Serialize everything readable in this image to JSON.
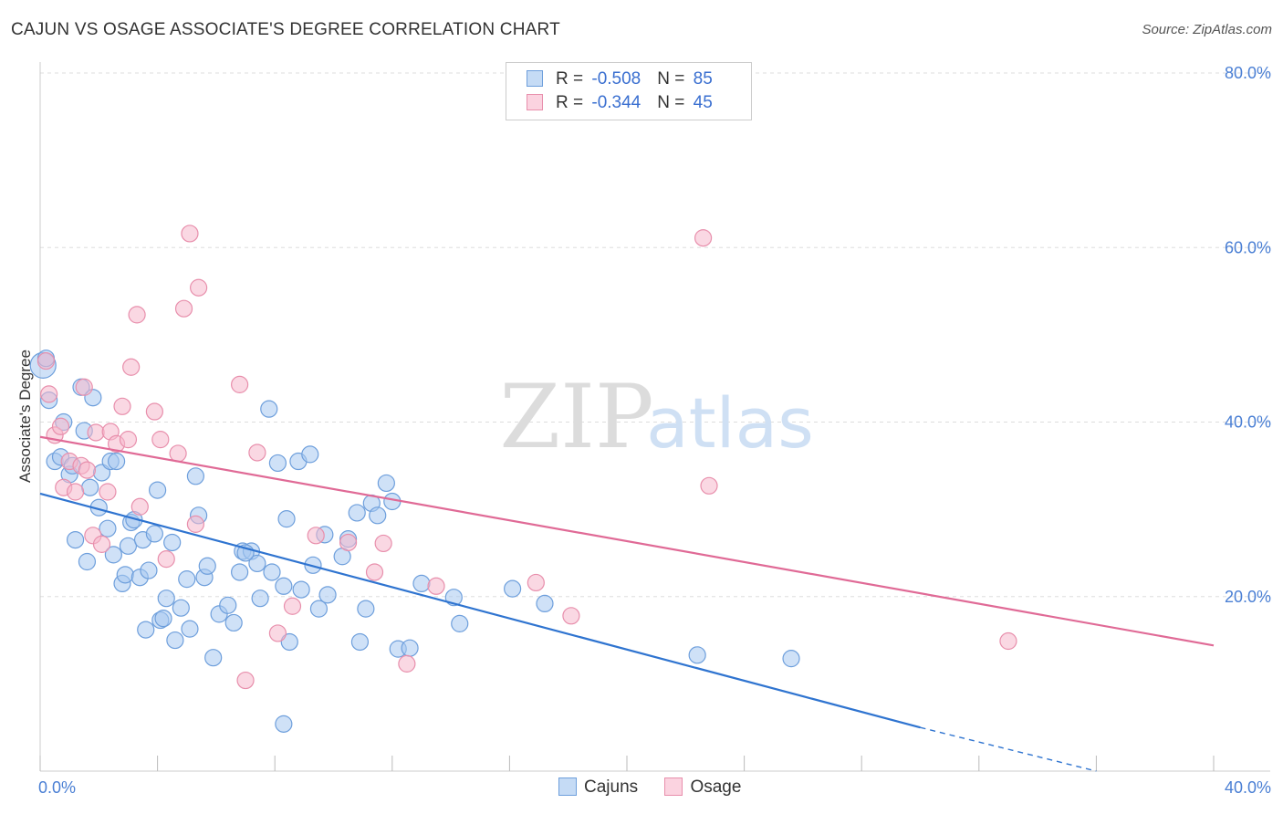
{
  "header": {
    "title": "CAJUN VS OSAGE ASSOCIATE'S DEGREE CORRELATION CHART",
    "source": "Source: ZipAtlas.com"
  },
  "watermark": {
    "zip": "ZIP",
    "atlas": "atlas"
  },
  "legend": {
    "rows": [
      {
        "r_label": "R = ",
        "r_value": "-0.508",
        "n_label": "N = ",
        "n_value": "85",
        "color": "#a8c8f0"
      },
      {
        "r_label": "R = ",
        "r_value": "-0.344",
        "n_label": "N = ",
        "n_value": "45",
        "color": "#f5b8cc"
      }
    ]
  },
  "bottom_legend": [
    {
      "label": "Cajuns",
      "color": "#a8c8f0"
    },
    {
      "label": "Osage",
      "color": "#f5b8cc"
    }
  ],
  "chart_data": {
    "type": "scatter",
    "title": "CAJUN VS OSAGE ASSOCIATE'S DEGREE CORRELATION CHART",
    "xlabel": "",
    "ylabel": "Associate's Degree",
    "xlim": [
      0,
      40
    ],
    "ylim": [
      0,
      80
    ],
    "x_tick_labels": [
      {
        "value": 0,
        "label": "0.0%"
      },
      {
        "value": 40,
        "label": "40.0%"
      }
    ],
    "y_tick_labels": [
      {
        "value": 20,
        "label": "20.0%"
      },
      {
        "value": 40,
        "label": "40.0%"
      },
      {
        "value": 60,
        "label": "60.0%"
      },
      {
        "value": 80,
        "label": "80.0%"
      }
    ],
    "grid": true,
    "legend_position": "top-center",
    "series": [
      {
        "name": "Cajuns",
        "color": "#a8c8f0",
        "stroke": "#6e9fdc",
        "line_color": "#2f74d0",
        "trend": {
          "x": [
            0,
            30
          ],
          "y": [
            31.8,
            5.0
          ],
          "dashed_to": [
            36,
            0
          ]
        },
        "points": [
          [
            0.1,
            46.5
          ],
          [
            0.2,
            47.3
          ],
          [
            0.3,
            42.5
          ],
          [
            0.5,
            35.5
          ],
          [
            0.7,
            36.0
          ],
          [
            0.8,
            40.0
          ],
          [
            1.0,
            34.0
          ],
          [
            1.1,
            35.0
          ],
          [
            1.2,
            26.5
          ],
          [
            1.4,
            44.0
          ],
          [
            1.5,
            39.0
          ],
          [
            1.6,
            24.0
          ],
          [
            1.7,
            32.5
          ],
          [
            1.8,
            42.8
          ],
          [
            2.0,
            30.2
          ],
          [
            2.1,
            34.2
          ],
          [
            2.3,
            27.8
          ],
          [
            2.4,
            35.5
          ],
          [
            2.5,
            24.8
          ],
          [
            2.6,
            35.5
          ],
          [
            2.8,
            21.5
          ],
          [
            2.9,
            22.5
          ],
          [
            3.0,
            25.8
          ],
          [
            3.1,
            28.5
          ],
          [
            3.2,
            28.8
          ],
          [
            3.4,
            22.2
          ],
          [
            3.5,
            26.5
          ],
          [
            3.6,
            16.2
          ],
          [
            3.7,
            23.0
          ],
          [
            3.9,
            27.2
          ],
          [
            4.0,
            32.2
          ],
          [
            4.1,
            17.3
          ],
          [
            4.2,
            17.5
          ],
          [
            4.3,
            19.8
          ],
          [
            4.5,
            26.2
          ],
          [
            4.6,
            15.0
          ],
          [
            4.8,
            18.7
          ],
          [
            5.0,
            22.0
          ],
          [
            5.1,
            16.3
          ],
          [
            5.3,
            33.8
          ],
          [
            5.4,
            29.3
          ],
          [
            5.6,
            22.2
          ],
          [
            5.7,
            23.5
          ],
          [
            5.9,
            13.0
          ],
          [
            6.1,
            18.0
          ],
          [
            6.4,
            19.0
          ],
          [
            6.6,
            17.0
          ],
          [
            6.8,
            22.8
          ],
          [
            6.9,
            25.2
          ],
          [
            7.2,
            25.2
          ],
          [
            7.4,
            23.8
          ],
          [
            7.5,
            19.8
          ],
          [
            7.8,
            41.5
          ],
          [
            7.9,
            22.8
          ],
          [
            8.1,
            35.3
          ],
          [
            8.3,
            21.2
          ],
          [
            8.4,
            28.9
          ],
          [
            8.5,
            14.8
          ],
          [
            8.8,
            35.5
          ],
          [
            8.9,
            20.8
          ],
          [
            9.2,
            36.3
          ],
          [
            9.3,
            23.6
          ],
          [
            9.5,
            18.6
          ],
          [
            9.7,
            27.1
          ],
          [
            9.8,
            20.2
          ],
          [
            10.3,
            24.6
          ],
          [
            10.5,
            26.6
          ],
          [
            10.8,
            29.6
          ],
          [
            10.9,
            14.8
          ],
          [
            11.1,
            18.6
          ],
          [
            11.3,
            30.7
          ],
          [
            11.5,
            29.3
          ],
          [
            11.8,
            33.0
          ],
          [
            12.0,
            30.9
          ],
          [
            12.2,
            14.0
          ],
          [
            12.6,
            14.1
          ],
          [
            13.0,
            21.5
          ],
          [
            14.1,
            19.9
          ],
          [
            14.3,
            16.9
          ],
          [
            16.1,
            20.9
          ],
          [
            17.2,
            19.2
          ],
          [
            22.4,
            13.3
          ],
          [
            25.6,
            12.9
          ],
          [
            8.3,
            5.4
          ],
          [
            7.0,
            25.0
          ]
        ]
      },
      {
        "name": "Osage",
        "color": "#f5b8cc",
        "stroke": "#e88fac",
        "line_color": "#e06a96",
        "trend": {
          "x": [
            0,
            40
          ],
          "y": [
            38.3,
            14.4
          ]
        },
        "points": [
          [
            0.2,
            47.0
          ],
          [
            0.3,
            43.2
          ],
          [
            0.5,
            38.5
          ],
          [
            0.7,
            39.5
          ],
          [
            0.8,
            32.5
          ],
          [
            1.0,
            35.5
          ],
          [
            1.2,
            32.0
          ],
          [
            1.4,
            35.0
          ],
          [
            1.5,
            44.0
          ],
          [
            1.6,
            34.5
          ],
          [
            1.8,
            27.0
          ],
          [
            1.9,
            38.8
          ],
          [
            2.1,
            26.0
          ],
          [
            2.3,
            32.0
          ],
          [
            2.4,
            38.9
          ],
          [
            2.6,
            37.5
          ],
          [
            2.8,
            41.8
          ],
          [
            3.1,
            46.3
          ],
          [
            3.0,
            38.0
          ],
          [
            3.3,
            52.3
          ],
          [
            3.4,
            30.3
          ],
          [
            3.9,
            41.2
          ],
          [
            4.1,
            38.0
          ],
          [
            4.3,
            24.3
          ],
          [
            4.7,
            36.4
          ],
          [
            4.9,
            53.0
          ],
          [
            5.1,
            61.6
          ],
          [
            5.4,
            55.4
          ],
          [
            5.3,
            28.3
          ],
          [
            6.8,
            44.3
          ],
          [
            7.0,
            10.4
          ],
          [
            7.4,
            36.5
          ],
          [
            8.1,
            15.8
          ],
          [
            8.6,
            18.9
          ],
          [
            9.4,
            27.0
          ],
          [
            10.5,
            26.2
          ],
          [
            11.4,
            22.8
          ],
          [
            11.7,
            26.1
          ],
          [
            12.5,
            12.3
          ],
          [
            13.5,
            21.2
          ],
          [
            16.9,
            21.6
          ],
          [
            18.1,
            17.8
          ],
          [
            22.8,
            32.7
          ],
          [
            22.6,
            61.1
          ],
          [
            33.0,
            14.9
          ]
        ]
      }
    ]
  }
}
